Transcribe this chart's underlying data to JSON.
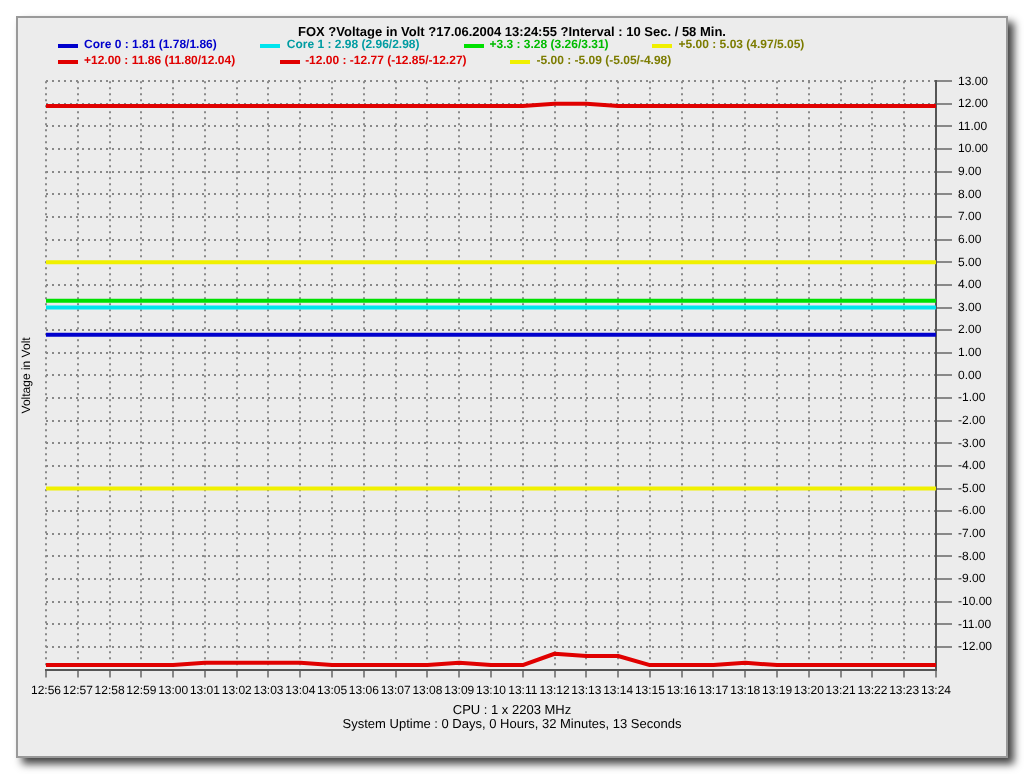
{
  "chart_data": {
    "type": "line",
    "title": "FOX ?Voltage in Volt ?17.06.2004 13:24:55 ?Interval : 10 Sec. / 58 Min.",
    "ylabel": "Voltage in Volt",
    "categories": [
      "12:56",
      "12:57",
      "12:58",
      "12:59",
      "13:00",
      "13:01",
      "13:02",
      "13:03",
      "13:04",
      "13:05",
      "13:06",
      "13:07",
      "13:08",
      "13:09",
      "13:10",
      "13:11",
      "13:12",
      "13:13",
      "13:14",
      "13:15",
      "13:16",
      "13:17",
      "13:18",
      "13:19",
      "13:20",
      "13:21",
      "13:22",
      "13:23",
      "13:24"
    ],
    "series": [
      {
        "name": "Core 0 : 1.81 (1.78/1.86)",
        "color": "#0000cc",
        "values": [
          1.8,
          1.8,
          1.8,
          1.8,
          1.8,
          1.8,
          1.8,
          1.8,
          1.8,
          1.8,
          1.8,
          1.8,
          1.8,
          1.8,
          1.8,
          1.8,
          1.8,
          1.8,
          1.8,
          1.8,
          1.8,
          1.8,
          1.8,
          1.8,
          1.8,
          1.8,
          1.8,
          1.8,
          1.8
        ]
      },
      {
        "name": "Core 1 : 2.98 (2.96/2.98)",
        "color": "#00e5ee",
        "values": [
          3,
          3,
          3,
          3,
          3,
          3,
          3,
          3,
          3,
          3,
          3,
          3,
          3,
          3,
          3,
          3,
          3,
          3,
          3,
          3,
          3,
          3,
          3,
          3,
          3,
          3,
          3,
          3,
          3
        ]
      },
      {
        "name": "+3.3 : 3.28 (3.26/3.31)",
        "color": "#00e000",
        "values": [
          3.3,
          3.3,
          3.3,
          3.3,
          3.3,
          3.3,
          3.3,
          3.3,
          3.3,
          3.3,
          3.3,
          3.3,
          3.3,
          3.3,
          3.3,
          3.3,
          3.3,
          3.3,
          3.3,
          3.3,
          3.3,
          3.3,
          3.3,
          3.3,
          3.3,
          3.3,
          3.3,
          3.3,
          3.3
        ]
      },
      {
        "name": "+5.00 : 5.03 (4.97/5.05)",
        "color": "#f0f000",
        "values": [
          5,
          5,
          5,
          5,
          5,
          5,
          5,
          5,
          5,
          5,
          5,
          5,
          5,
          5,
          5,
          5,
          5,
          5,
          5,
          5,
          5,
          5,
          5,
          5,
          5,
          5,
          5,
          5,
          5
        ]
      },
      {
        "name": "+12.00 : 11.86 (11.80/12.04)",
        "color": "#e00000",
        "values": [
          11.9,
          11.9,
          11.9,
          11.9,
          11.9,
          11.9,
          11.9,
          11.9,
          11.9,
          11.9,
          11.9,
          11.9,
          11.9,
          11.9,
          11.9,
          11.9,
          12,
          12,
          11.9,
          11.9,
          11.9,
          11.9,
          11.9,
          11.9,
          11.9,
          11.9,
          11.9,
          11.9,
          11.9
        ]
      },
      {
        "name": "-12.00 : -12.77 (-12.85/-12.27)",
        "color": "#e00000",
        "values": [
          -12.8,
          -12.8,
          -12.8,
          -12.8,
          -12.8,
          -12.7,
          -12.7,
          -12.7,
          -12.7,
          -12.8,
          -12.8,
          -12.8,
          -12.8,
          -12.7,
          -12.8,
          -12.8,
          -12.3,
          -12.4,
          -12.4,
          -12.8,
          -12.8,
          -12.8,
          -12.7,
          -12.8,
          -12.8,
          -12.8,
          -12.8,
          -12.8,
          -12.8
        ]
      },
      {
        "name": "-5.00 : -5.09 (-5.05/-4.98)",
        "color": "#f0f000",
        "values": [
          -5,
          -5,
          -5,
          -5,
          -5,
          -5,
          -5,
          -5,
          -5,
          -5,
          -5,
          -5,
          -5,
          -5,
          -5,
          -5,
          -5,
          -5,
          -5,
          -5,
          -5,
          -5,
          -5,
          -5,
          -5,
          -5,
          -5,
          -5,
          -5
        ]
      }
    ],
    "ylim": [
      -13,
      13
    ],
    "yticks": [
      {
        "value": 13,
        "label": "13.00"
      },
      {
        "value": 12,
        "label": "12.00"
      },
      {
        "value": 11,
        "label": "11.00"
      },
      {
        "value": 10,
        "label": "10.00"
      },
      {
        "value": 9,
        "label": "9.00"
      },
      {
        "value": 8,
        "label": "8.00"
      },
      {
        "value": 7,
        "label": "7.00"
      },
      {
        "value": 6,
        "label": "6.00"
      },
      {
        "value": 5,
        "label": "5.00"
      },
      {
        "value": 4,
        "label": "4.00"
      },
      {
        "value": 3,
        "label": "3.00"
      },
      {
        "value": 2,
        "label": "2.00"
      },
      {
        "value": 1,
        "label": "1.00"
      },
      {
        "value": 0,
        "label": "0.00"
      },
      {
        "value": -1,
        "label": "-1.00"
      },
      {
        "value": -2,
        "label": "-2.00"
      },
      {
        "value": -3,
        "label": "-3.00"
      },
      {
        "value": -4,
        "label": "-4.00"
      },
      {
        "value": -5,
        "label": "-5.00"
      },
      {
        "value": -6,
        "label": "-6.00"
      },
      {
        "value": -7,
        "label": "-7.00"
      },
      {
        "value": -8,
        "label": "-8.00"
      },
      {
        "value": -9,
        "label": "-9.00"
      },
      {
        "value": -10,
        "label": "-10.00"
      },
      {
        "value": -11,
        "label": "-11.00"
      },
      {
        "value": -12,
        "label": "-12.00"
      }
    ],
    "grid": true,
    "legend": "top",
    "marker": "none",
    "line_style": "solid",
    "annotations": [
      "CPU : 1 x 2203 MHz",
      "System Uptime : 0 Days, 0 Hours, 32 Minutes, 13 Seconds"
    ]
  }
}
